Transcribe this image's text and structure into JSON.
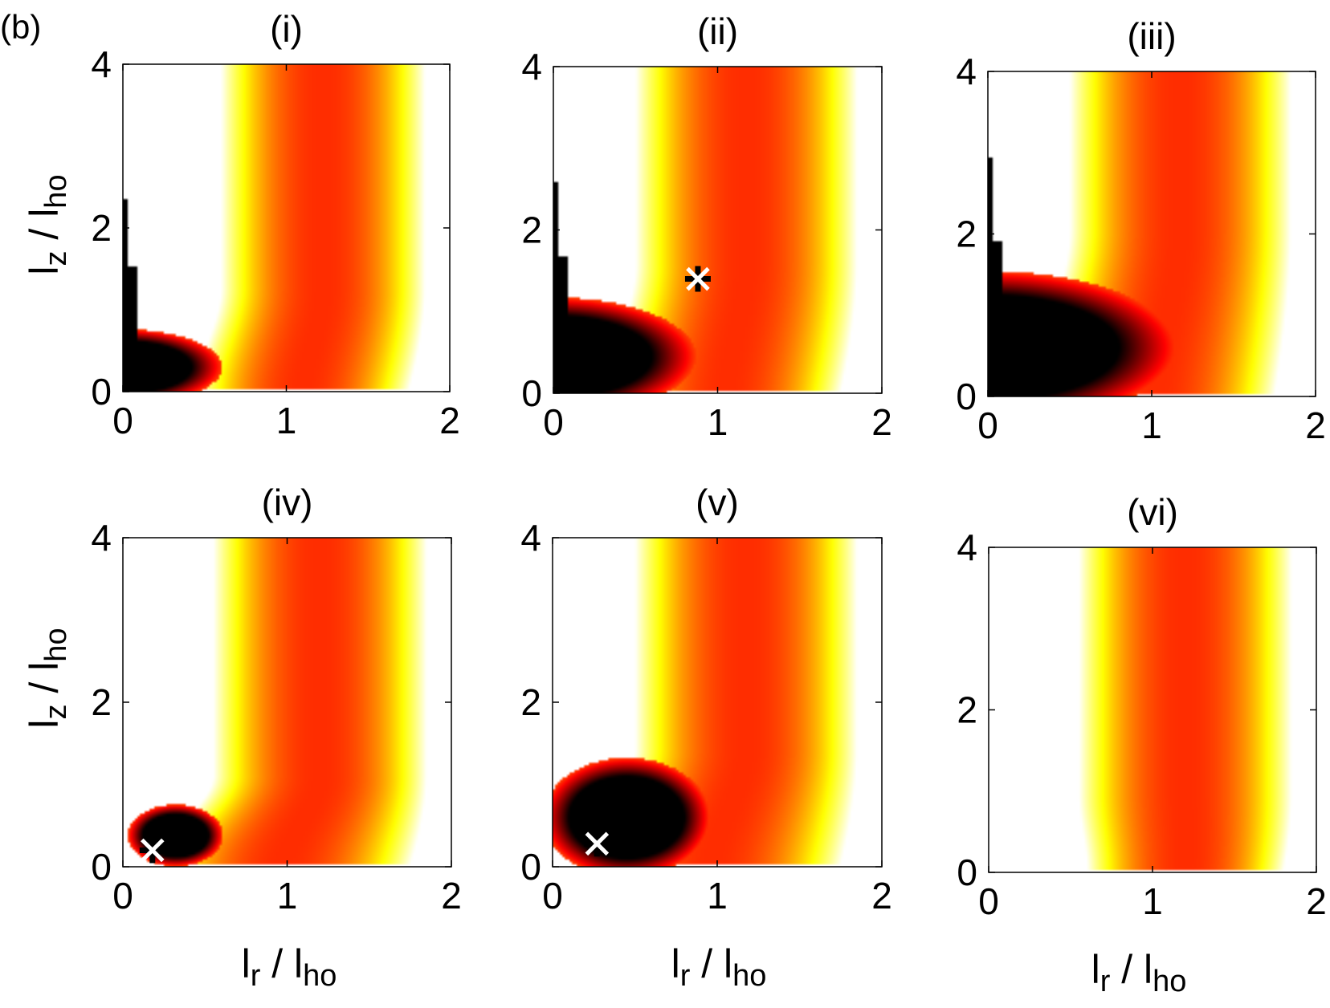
{
  "figure": {
    "label": "(b)",
    "x_label": {
      "main": "l",
      "sub": "r",
      "sep": " / ",
      "main2": "l",
      "sub2": "ho"
    },
    "y_label": {
      "main": "l",
      "sub": "z",
      "sep": " / ",
      "main2": "l",
      "sub2": "ho"
    }
  },
  "chart_data": [
    {
      "type": "heatmap",
      "title": "(i)",
      "xlim": [
        0,
        2
      ],
      "ylim": [
        0,
        4
      ],
      "xticks": [
        "0",
        "1",
        "2"
      ],
      "yticks": [
        "0",
        "2",
        "4"
      ],
      "colormap": [
        "#000000",
        "#ff0000",
        "#ffff00",
        "#ffffff"
      ],
      "band": {
        "x_at_top": [
          0.6,
          1.85
        ],
        "x_at_bottom": [
          0.45,
          1.75
        ],
        "bend_y": 0.8
      },
      "dark_region": {
        "cx": 0.0,
        "cy": 0.3,
        "rx": 0.42,
        "ry": 0.32,
        "spike_top": 2.35
      },
      "marker": null
    },
    {
      "type": "heatmap",
      "title": "(ii)",
      "xlim": [
        0,
        2
      ],
      "ylim": [
        0,
        4
      ],
      "xticks": [
        "0",
        "1",
        "2"
      ],
      "yticks": [
        "0",
        "2",
        "4"
      ],
      "colormap": [
        "#000000",
        "#ff0000",
        "#ffff00",
        "#ffffff"
      ],
      "band": {
        "x_at_top": [
          0.5,
          1.85
        ],
        "x_at_bottom": [
          0.35,
          1.75
        ],
        "bend_y": 1.0
      },
      "dark_region": {
        "cx": 0.0,
        "cy": 0.45,
        "rx": 0.6,
        "ry": 0.5,
        "spike_top": 2.6
      },
      "marker": {
        "x": 0.88,
        "y": 1.4
      }
    },
    {
      "type": "heatmap",
      "title": "(iii)",
      "xlim": [
        0,
        2
      ],
      "ylim": [
        0,
        4
      ],
      "xticks": [
        "0",
        "1",
        "2"
      ],
      "yticks": [
        "0",
        "2",
        "4"
      ],
      "colormap": [
        "#000000",
        "#ff0000",
        "#ffff00",
        "#ffffff"
      ],
      "band": {
        "x_at_top": [
          0.5,
          1.85
        ],
        "x_at_bottom": [
          0.3,
          1.75
        ],
        "bend_y": 1.3
      },
      "dark_region": {
        "cx": 0.0,
        "cy": 0.6,
        "rx": 0.8,
        "ry": 0.65,
        "spike_top": 2.95
      },
      "marker": null
    },
    {
      "type": "heatmap",
      "title": "(iv)",
      "xlim": [
        0,
        2
      ],
      "ylim": [
        0,
        4
      ],
      "xticks": [
        "0",
        "1",
        "2"
      ],
      "yticks": [
        "0",
        "2",
        "4"
      ],
      "colormap": [
        "#000000",
        "#ff0000",
        "#ffff00",
        "#ffffff"
      ],
      "band": {
        "x_at_top": [
          0.55,
          1.85
        ],
        "x_at_bottom": [
          0.2,
          1.75
        ],
        "bend_y": 0.7
      },
      "dark_region": {
        "cx": 0.32,
        "cy": 0.38,
        "rx": 0.2,
        "ry": 0.26,
        "spike_top": null
      },
      "marker": {
        "x": 0.18,
        "y": 0.2
      }
    },
    {
      "type": "heatmap",
      "title": "(v)",
      "xlim": [
        0,
        2
      ],
      "ylim": [
        0,
        4
      ],
      "xticks": [
        "0",
        "1",
        "2"
      ],
      "yticks": [
        "0",
        "2",
        "4"
      ],
      "colormap": [
        "#000000",
        "#ff0000",
        "#ffff00",
        "#ffffff"
      ],
      "band": {
        "x_at_top": [
          0.5,
          1.85
        ],
        "x_at_bottom": [
          0.18,
          1.75
        ],
        "bend_y": 0.9
      },
      "dark_region": {
        "cx": 0.45,
        "cy": 0.6,
        "rx": 0.35,
        "ry": 0.5,
        "spike_top": null
      },
      "marker": {
        "x": 0.27,
        "y": 0.28
      }
    },
    {
      "type": "heatmap",
      "title": "(vi)",
      "xlim": [
        0,
        2
      ],
      "ylim": [
        0,
        4
      ],
      "xticks": [
        "0",
        "1",
        "2"
      ],
      "yticks": [
        "0",
        "2",
        "4"
      ],
      "colormap": [
        "#000000",
        "#ff0000",
        "#ffff00",
        "#ffffff"
      ],
      "band": {
        "x_at_top": [
          0.55,
          1.85
        ],
        "x_at_bottom": [
          0.6,
          1.8
        ],
        "bend_y": 0.6
      },
      "dark_region": null,
      "marker": null
    }
  ]
}
